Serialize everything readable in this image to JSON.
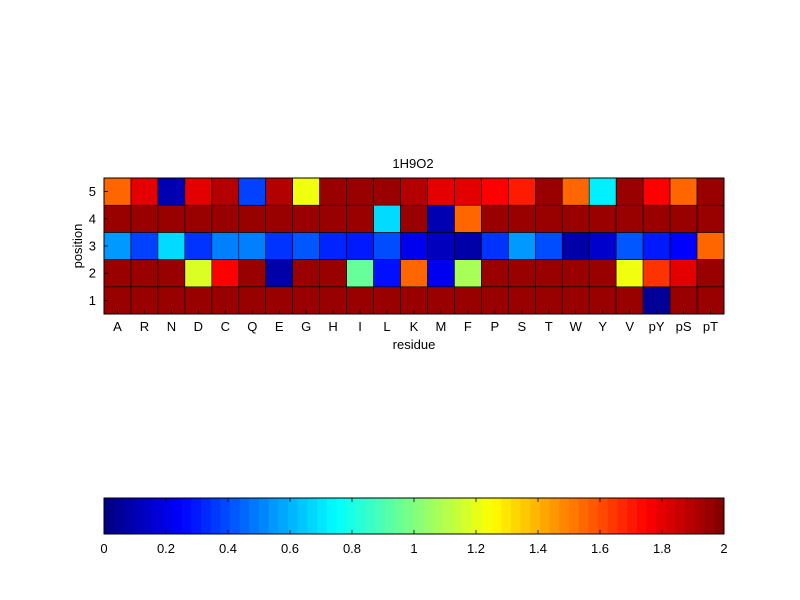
{
  "chart_data": {
    "type": "heatmap",
    "title": "1H9O2",
    "xlabel": "residue",
    "ylabel": "position",
    "x_categories": [
      "A",
      "R",
      "N",
      "D",
      "C",
      "Q",
      "E",
      "G",
      "H",
      "I",
      "L",
      "K",
      "M",
      "F",
      "P",
      "S",
      "T",
      "W",
      "Y",
      "V",
      "pY",
      "pS",
      "pT"
    ],
    "y_categories": [
      "1",
      "2",
      "3",
      "4",
      "5"
    ],
    "colormap": "jet",
    "clim": [
      0,
      2
    ],
    "values": [
      [
        1.95,
        1.95,
        1.95,
        1.95,
        1.95,
        1.95,
        1.95,
        1.95,
        1.95,
        1.95,
        1.95,
        1.95,
        1.95,
        1.95,
        1.95,
        1.95,
        1.95,
        1.95,
        1.95,
        1.95,
        0.05,
        1.95,
        1.95
      ],
      [
        1.95,
        1.95,
        1.95,
        1.18,
        1.75,
        1.95,
        0.08,
        1.95,
        1.95,
        0.95,
        0.28,
        1.55,
        0.22,
        1.08,
        1.95,
        1.95,
        1.95,
        1.95,
        1.95,
        1.22,
        1.65,
        1.8,
        1.95
      ],
      [
        0.55,
        0.38,
        0.68,
        0.35,
        0.5,
        0.5,
        0.35,
        0.42,
        0.32,
        0.3,
        0.4,
        0.22,
        0.12,
        0.08,
        0.35,
        0.55,
        0.4,
        0.08,
        0.15,
        0.42,
        0.3,
        0.25,
        1.55
      ],
      [
        1.95,
        1.95,
        1.95,
        1.95,
        1.95,
        1.95,
        1.95,
        1.95,
        1.95,
        1.95,
        0.68,
        1.95,
        0.1,
        1.55,
        1.95,
        1.95,
        1.95,
        1.95,
        1.95,
        1.95,
        1.95,
        1.95,
        1.95
      ],
      [
        1.55,
        1.8,
        0.1,
        1.8,
        1.9,
        0.38,
        1.9,
        1.22,
        1.95,
        1.95,
        1.95,
        1.9,
        1.8,
        1.8,
        1.75,
        1.7,
        1.95,
        1.55,
        0.72,
        1.95,
        1.75,
        1.55,
        1.95
      ]
    ],
    "colorbar": {
      "ticks": [
        "0",
        "0.2",
        "0.4",
        "0.6",
        "0.8",
        "1",
        "1.2",
        "1.4",
        "1.6",
        "1.8",
        "2"
      ],
      "orientation": "horizontal",
      "placement": "bottom"
    },
    "grid": false
  }
}
